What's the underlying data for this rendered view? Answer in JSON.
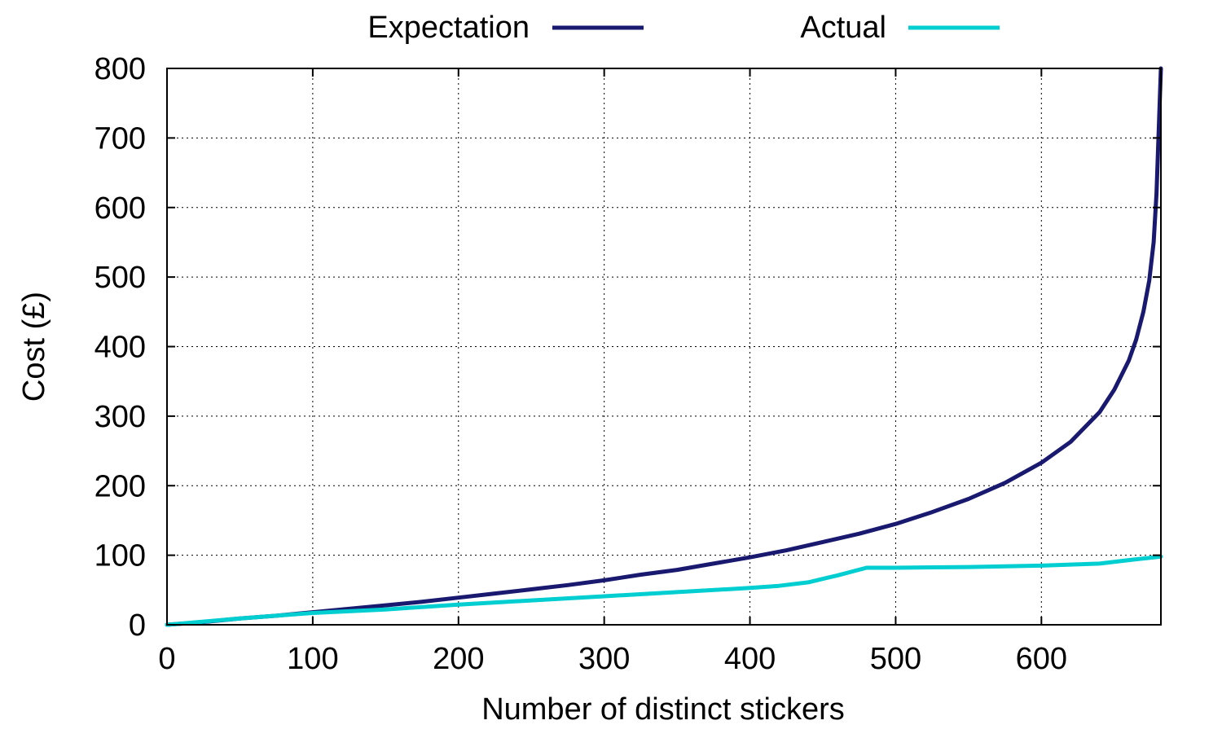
{
  "chart_data": {
    "type": "line",
    "xlabel": "Number of distinct stickers",
    "ylabel": "Cost (£)",
    "xlim": [
      0,
      682
    ],
    "ylim": [
      0,
      800
    ],
    "xticks": [
      0,
      100,
      200,
      300,
      400,
      500,
      600
    ],
    "yticks": [
      0,
      100,
      200,
      300,
      400,
      500,
      600,
      700,
      800
    ],
    "grid": true,
    "legend_position": "top",
    "series": [
      {
        "name": "Expectation",
        "color": "#191970",
        "x": [
          0,
          25,
          50,
          75,
          100,
          125,
          150,
          175,
          200,
          225,
          250,
          275,
          300,
          325,
          350,
          375,
          400,
          425,
          450,
          475,
          500,
          525,
          550,
          575,
          600,
          620,
          640,
          650,
          660,
          665,
          670,
          674,
          677,
          679,
          680,
          681,
          682
        ],
        "y": [
          0,
          4,
          9,
          13,
          18,
          23,
          28,
          33,
          39,
          45,
          51,
          57,
          64,
          72,
          79,
          88,
          97,
          107,
          119,
          131,
          145,
          162,
          181,
          204,
          233,
          263,
          306,
          338,
          380,
          410,
          450,
          495,
          550,
          620,
          680,
          740,
          800
        ]
      },
      {
        "name": "Actual",
        "color": "#00ced1",
        "x": [
          0,
          50,
          100,
          150,
          200,
          250,
          300,
          350,
          400,
          420,
          440,
          460,
          480,
          500,
          550,
          600,
          640,
          660,
          682
        ],
        "y": [
          0,
          9,
          17,
          22,
          29,
          35,
          41,
          47,
          53,
          56,
          61,
          71,
          82,
          82,
          83,
          85,
          88,
          93,
          98
        ]
      }
    ]
  }
}
